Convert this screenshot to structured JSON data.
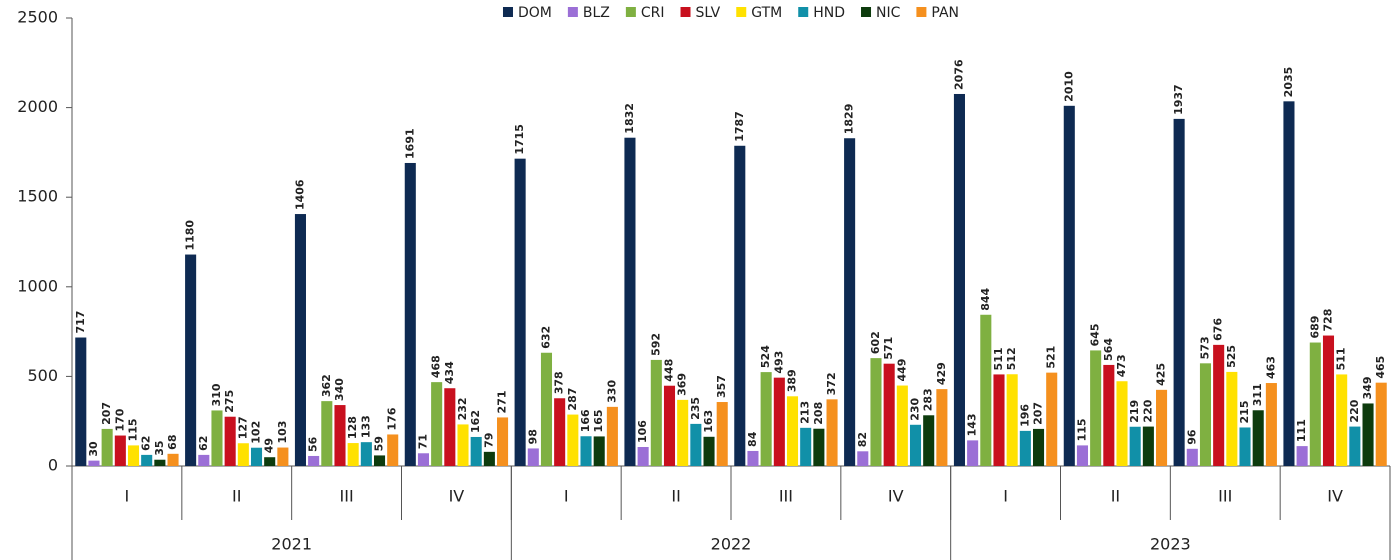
{
  "chart_data": {
    "type": "bar",
    "categories": [
      "I",
      "II",
      "III",
      "IV",
      "I",
      "II",
      "III",
      "IV",
      "I",
      "II",
      "III",
      "IV"
    ],
    "groups": [
      "2021",
      "2022",
      "2023"
    ],
    "ylim": [
      0,
      2500
    ],
    "yticks": [
      0,
      500,
      1000,
      1500,
      2000,
      2500
    ],
    "legend": "top",
    "series": [
      {
        "name": "DOM",
        "color": "#0e2a52",
        "values": [
          717,
          1180,
          1406,
          1691,
          1715,
          1832,
          1787,
          1829,
          2076,
          2010,
          1937,
          2035
        ]
      },
      {
        "name": "BLZ",
        "color": "#9b6fd6",
        "values": [
          30,
          62,
          56,
          71,
          98,
          106,
          84,
          82,
          143,
          115,
          96,
          111
        ]
      },
      {
        "name": "CRI",
        "color": "#7fb041",
        "values": [
          207,
          310,
          362,
          468,
          632,
          592,
          524,
          602,
          844,
          645,
          573,
          689
        ]
      },
      {
        "name": "SLV",
        "color": "#c8101e",
        "values": [
          170,
          275,
          340,
          434,
          378,
          448,
          493,
          571,
          511,
          564,
          676,
          728
        ]
      },
      {
        "name": "GTM",
        "color": "#ffe100",
        "values": [
          115,
          127,
          128,
          232,
          287,
          369,
          389,
          449,
          512,
          473,
          525,
          511
        ]
      },
      {
        "name": "HND",
        "color": "#1190a8",
        "values": [
          62,
          102,
          133,
          162,
          166,
          235,
          213,
          230,
          196,
          219,
          215,
          220
        ]
      },
      {
        "name": "NIC",
        "color": "#0d3b0d",
        "values": [
          35,
          49,
          59,
          79,
          165,
          163,
          208,
          283,
          207,
          220,
          311,
          349
        ]
      },
      {
        "name": "PAN",
        "color": "#f5901e",
        "values": [
          68,
          103,
          176,
          271,
          330,
          357,
          372,
          429,
          521,
          425,
          463,
          465
        ]
      }
    ]
  }
}
